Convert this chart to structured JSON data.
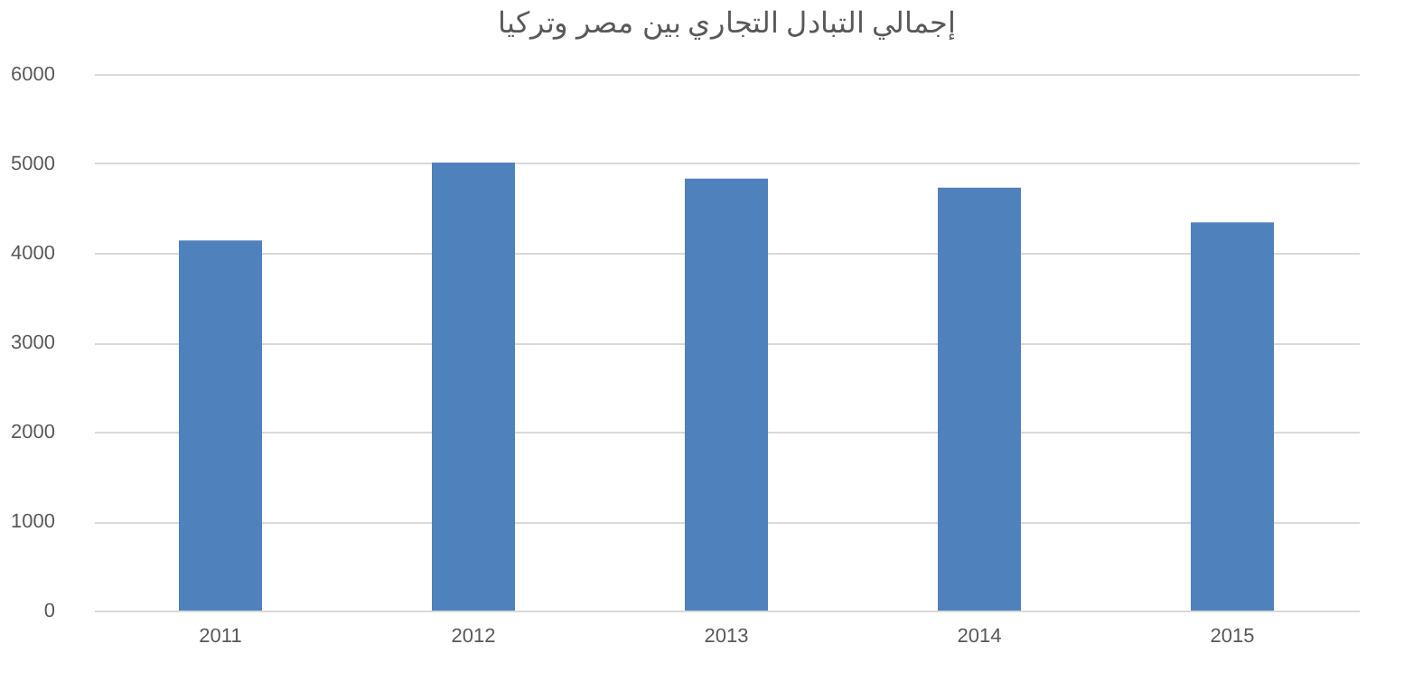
{
  "chart_data": {
    "type": "bar",
    "title": "إجمالي التبادل التجاري بين مصر وتركيا",
    "categories": [
      "2011",
      "2012",
      "2013",
      "2014",
      "2015"
    ],
    "values": [
      4140,
      5010,
      4830,
      4730,
      4340
    ],
    "color": "#4f81bd",
    "ylim": [
      0,
      6000
    ],
    "yticks": [
      0,
      1000,
      2000,
      3000,
      4000,
      5000,
      6000
    ],
    "grid": "y"
  }
}
